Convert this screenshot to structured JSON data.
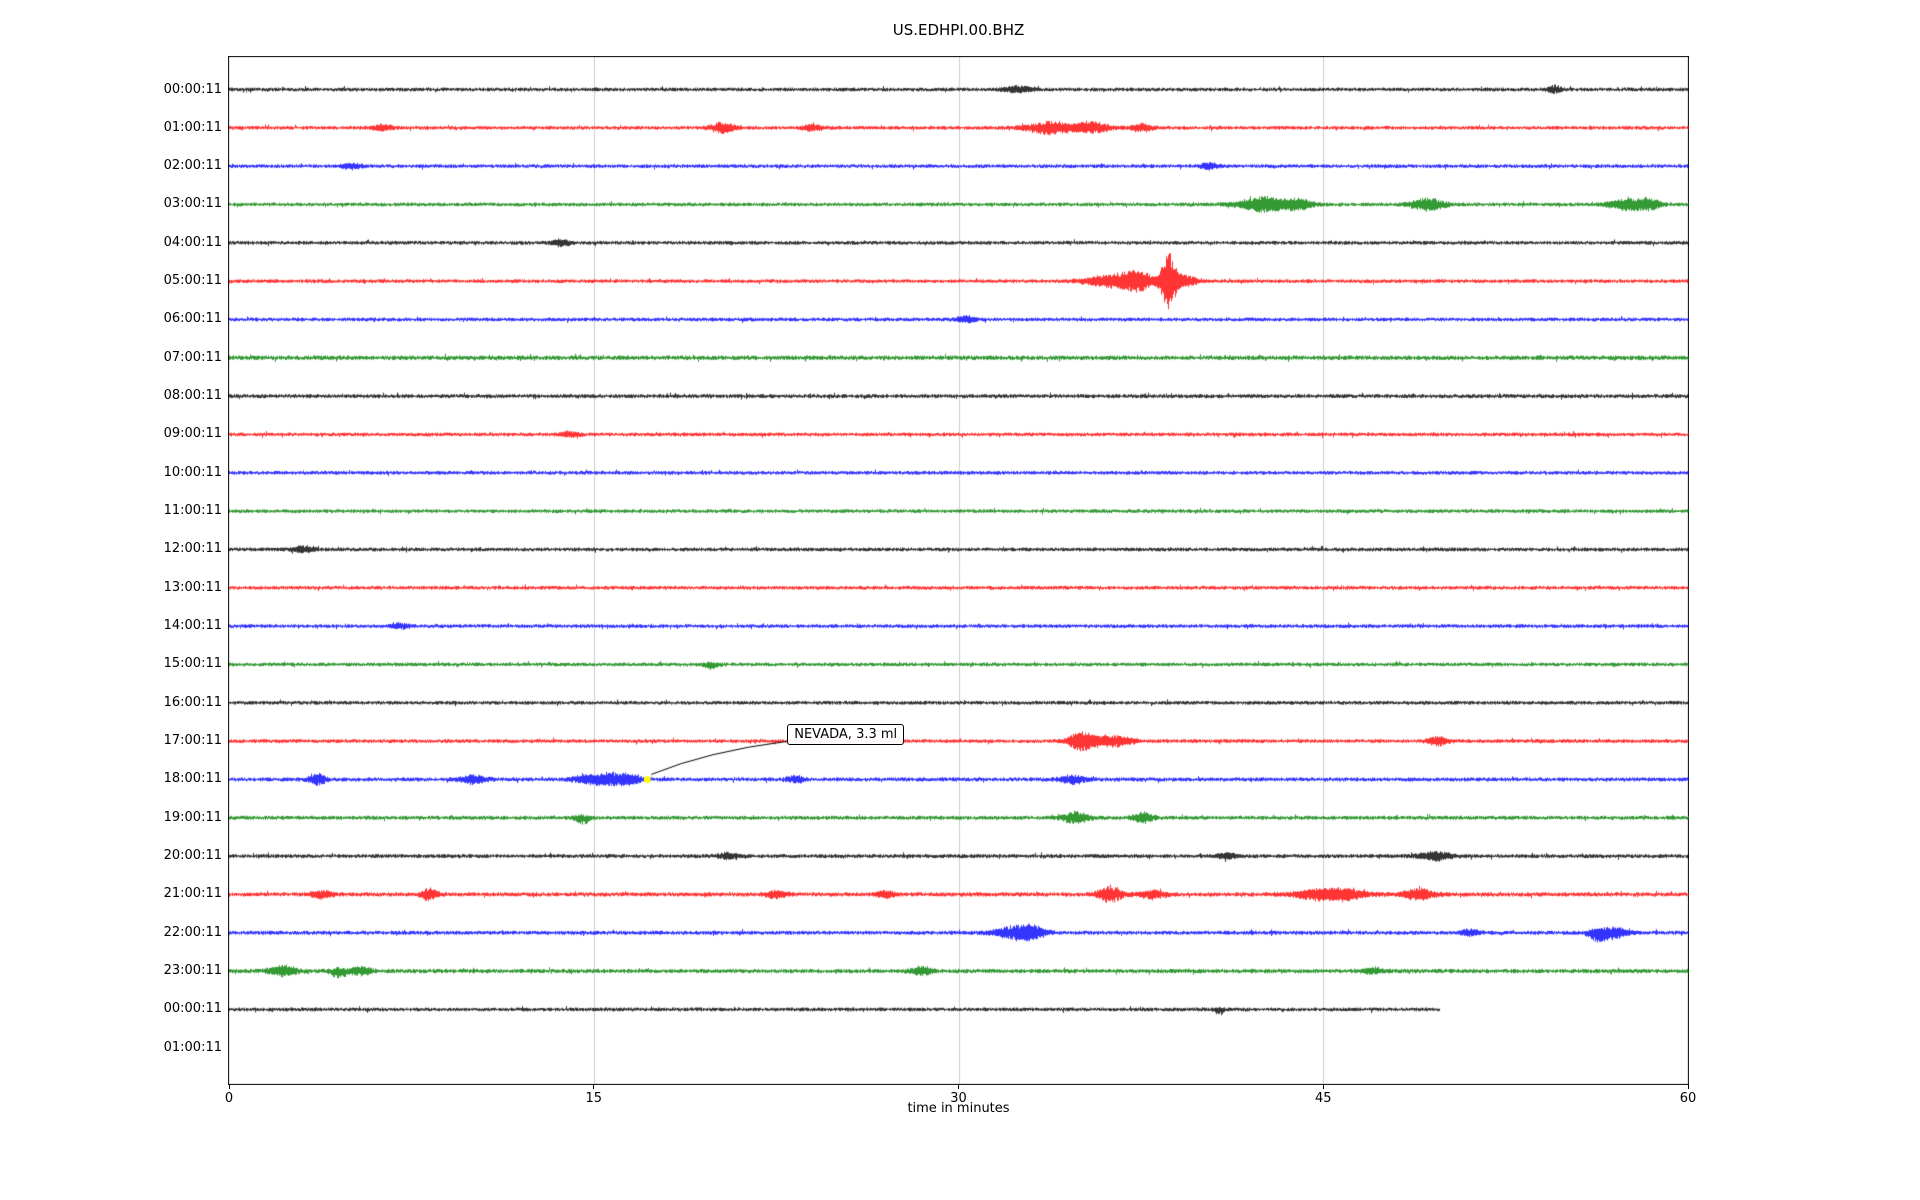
{
  "figure": {
    "background": "#ffffff",
    "axes_border_color": "#000000",
    "grid_color": "#cccccc"
  },
  "chart_data": {
    "type": "line",
    "subtype": "helicorder_seismogram",
    "title": "US.EDHPI.00.BHZ",
    "xlabel": "time in minutes",
    "x_range": [
      0,
      60
    ],
    "x_ticks": [
      0,
      15,
      30,
      45,
      60
    ],
    "grid_ticks": [
      15,
      30,
      45
    ],
    "legend": "none",
    "annotation": {
      "text": "NEVADA, 3.3 ml",
      "row_index": 18,
      "t_minutes": 17.2,
      "marker_color": "#ffff00"
    },
    "rows": [
      {
        "label": "00:00:11",
        "color": "#000000",
        "base": 1.5,
        "events": [
          {
            "t": 32.4,
            "a": 3,
            "w": 0.4
          },
          {
            "t": 54.5,
            "a": 3.5,
            "w": 0.2
          }
        ]
      },
      {
        "label": "01:00:11",
        "color": "#ff0000",
        "base": 1.5,
        "events": [
          {
            "t": 6.3,
            "a": 3,
            "w": 0.3
          },
          {
            "t": 20.3,
            "a": 5,
            "w": 0.35
          },
          {
            "t": 24,
            "a": 3,
            "w": 0.3
          },
          {
            "t": 33.8,
            "a": 6,
            "w": 0.7
          },
          {
            "t": 35.5,
            "a": 5,
            "w": 0.5
          },
          {
            "t": 37.5,
            "a": 4,
            "w": 0.3
          }
        ]
      },
      {
        "label": "02:00:11",
        "color": "#0000ff",
        "base": 1.5,
        "events": [
          {
            "t": 5,
            "a": 2.5,
            "w": 0.3
          },
          {
            "t": 40.3,
            "a": 3,
            "w": 0.25
          }
        ]
      },
      {
        "label": "03:00:11",
        "color": "#008000",
        "base": 1.5,
        "events": [
          {
            "t": 42.6,
            "a": 7,
            "w": 0.8
          },
          {
            "t": 44,
            "a": 4,
            "w": 0.4
          },
          {
            "t": 49.3,
            "a": 6,
            "w": 0.5
          },
          {
            "t": 57.6,
            "a": 6,
            "w": 0.6
          },
          {
            "t": 58.5,
            "a": 4,
            "w": 0.3
          }
        ]
      },
      {
        "label": "04:00:11",
        "color": "#000000",
        "base": 1.5,
        "events": [
          {
            "t": 13.6,
            "a": 3,
            "w": 0.3
          }
        ]
      },
      {
        "label": "05:00:11",
        "color": "#ff0000",
        "base": 1.5,
        "events": [
          {
            "t": 36.3,
            "a": 6,
            "w": 0.8
          },
          {
            "t": 37.4,
            "a": 8,
            "w": 0.5
          },
          {
            "t": 38.6,
            "a": 26,
            "w": 0.22
          },
          {
            "t": 39.2,
            "a": 6,
            "w": 0.4
          }
        ]
      },
      {
        "label": "06:00:11",
        "color": "#0000ff",
        "base": 1.5,
        "events": [
          {
            "t": 30.3,
            "a": 3,
            "w": 0.3
          }
        ]
      },
      {
        "label": "07:00:11",
        "color": "#008000",
        "base": 1.8,
        "events": []
      },
      {
        "label": "08:00:11",
        "color": "#000000",
        "base": 1.6,
        "events": []
      },
      {
        "label": "09:00:11",
        "color": "#ff0000",
        "base": 1.5,
        "events": [
          {
            "t": 14,
            "a": 2.5,
            "w": 0.3
          }
        ]
      },
      {
        "label": "10:00:11",
        "color": "#0000ff",
        "base": 1.5,
        "events": []
      },
      {
        "label": "11:00:11",
        "color": "#008000",
        "base": 1.5,
        "events": []
      },
      {
        "label": "12:00:11",
        "color": "#000000",
        "base": 1.5,
        "events": [
          {
            "t": 3,
            "a": 3,
            "w": 0.3
          }
        ]
      },
      {
        "label": "13:00:11",
        "color": "#ff0000",
        "base": 1.5,
        "events": []
      },
      {
        "label": "14:00:11",
        "color": "#0000ff",
        "base": 1.5,
        "events": [
          {
            "t": 7,
            "a": 2.5,
            "w": 0.3
          }
        ]
      },
      {
        "label": "15:00:11",
        "color": "#008000",
        "base": 1.5,
        "events": [
          {
            "t": 19.8,
            "a": 4.5,
            "w": 0.25,
            "d": -1
          }
        ]
      },
      {
        "label": "16:00:11",
        "color": "#000000",
        "base": 1.5,
        "events": []
      },
      {
        "label": "17:00:11",
        "color": "#ff0000",
        "base": 1.5,
        "events": [
          {
            "t": 35,
            "a": 9,
            "w": 0.35
          },
          {
            "t": 36.2,
            "a": 6,
            "w": 0.6
          },
          {
            "t": 49.7,
            "a": 4,
            "w": 0.3
          }
        ]
      },
      {
        "label": "18:00:11",
        "color": "#0000ff",
        "base": 1.6,
        "events": [
          {
            "t": 3.6,
            "a": 6,
            "w": 0.25
          },
          {
            "t": 10,
            "a": 4,
            "w": 0.4
          },
          {
            "t": 14.9,
            "a": 5,
            "w": 0.5
          },
          {
            "t": 15.8,
            "a": 5,
            "w": 0.4
          },
          {
            "t": 16.5,
            "a": 4,
            "w": 0.3
          },
          {
            "t": 23.3,
            "a": 3.5,
            "w": 0.25
          },
          {
            "t": 34.7,
            "a": 4,
            "w": 0.4
          }
        ]
      },
      {
        "label": "19:00:11",
        "color": "#008000",
        "base": 1.6,
        "events": [
          {
            "t": 14.5,
            "a": 7,
            "w": 0.2,
            "d": -1
          },
          {
            "t": 34.8,
            "a": 5,
            "w": 0.4
          },
          {
            "t": 37.6,
            "a": 5,
            "w": 0.3
          }
        ]
      },
      {
        "label": "20:00:11",
        "color": "#000000",
        "base": 1.6,
        "events": [
          {
            "t": 20.5,
            "a": 3,
            "w": 0.3
          },
          {
            "t": 41,
            "a": 3,
            "w": 0.25
          },
          {
            "t": 49.6,
            "a": 4,
            "w": 0.5
          }
        ]
      },
      {
        "label": "21:00:11",
        "color": "#ff0000",
        "base": 1.7,
        "events": [
          {
            "t": 3.8,
            "a": 3.5,
            "w": 0.3
          },
          {
            "t": 8.2,
            "a": 5.5,
            "w": 0.25
          },
          {
            "t": 22.5,
            "a": 3.5,
            "w": 0.3
          },
          {
            "t": 27,
            "a": 3,
            "w": 0.3
          },
          {
            "t": 36.2,
            "a": 8,
            "w": 0.35
          },
          {
            "t": 38,
            "a": 4,
            "w": 0.4
          },
          {
            "t": 44.8,
            "a": 5,
            "w": 0.8
          },
          {
            "t": 46,
            "a": 4,
            "w": 0.6
          },
          {
            "t": 48.9,
            "a": 5.5,
            "w": 0.5
          }
        ]
      },
      {
        "label": "22:00:11",
        "color": "#0000ff",
        "base": 1.6,
        "events": [
          {
            "t": 32.3,
            "a": 6,
            "w": 0.6
          },
          {
            "t": 33,
            "a": 5,
            "w": 0.4
          },
          {
            "t": 51,
            "a": 3,
            "w": 0.3
          },
          {
            "t": 56.3,
            "a": 9,
            "w": 0.3,
            "d": -1
          },
          {
            "t": 57,
            "a": 5,
            "w": 0.4
          }
        ]
      },
      {
        "label": "23:00:11",
        "color": "#008000",
        "base": 1.7,
        "events": [
          {
            "t": 2.2,
            "a": 5,
            "w": 0.4
          },
          {
            "t": 4.5,
            "a": 7,
            "w": 0.25,
            "d": -1
          },
          {
            "t": 5.4,
            "a": 4,
            "w": 0.3
          },
          {
            "t": 28.5,
            "a": 4,
            "w": 0.3
          },
          {
            "t": 47,
            "a": 3,
            "w": 0.3
          }
        ]
      },
      {
        "label": "00:00:11",
        "color": "#000000",
        "base": 1.5,
        "end": 49.8,
        "events": [
          {
            "t": 40.7,
            "a": 5,
            "w": 0.15,
            "d": -1
          }
        ]
      },
      {
        "label": "01:00:11",
        "color": "#000000",
        "base": 0,
        "empty": true,
        "events": []
      }
    ]
  }
}
